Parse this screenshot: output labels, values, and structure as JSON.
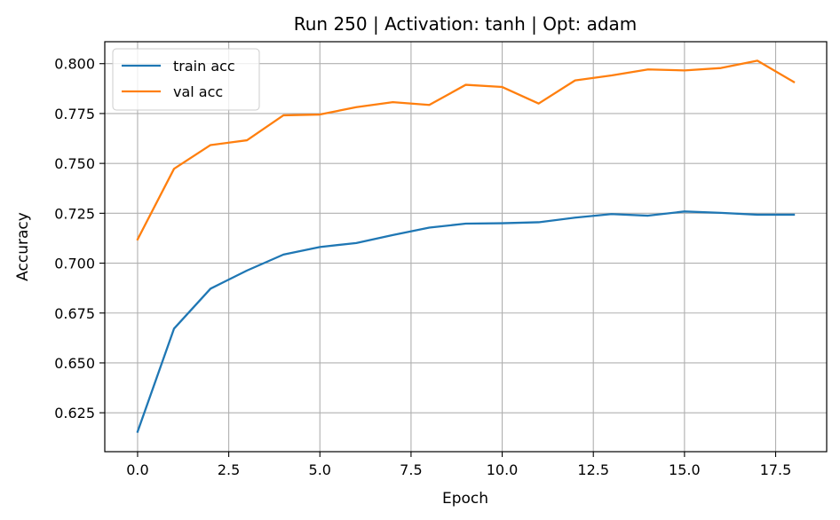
{
  "chart_data": {
    "type": "line",
    "title": "Run 250 | Activation: tanh | Opt: adam",
    "xlabel": "Epoch",
    "ylabel": "Accuracy",
    "xlim": [
      -0.9,
      18.9
    ],
    "ylim": [
      0.6055,
      0.811
    ],
    "xticks": [
      0.0,
      2.5,
      5.0,
      7.5,
      10.0,
      12.5,
      15.0,
      17.5
    ],
    "xtick_labels": [
      "0.0",
      "2.5",
      "5.0",
      "7.5",
      "10.0",
      "12.5",
      "15.0",
      "17.5"
    ],
    "yticks": [
      0.625,
      0.65,
      0.675,
      0.7,
      0.725,
      0.75,
      0.775,
      0.8
    ],
    "ytick_labels": [
      "0.625",
      "0.650",
      "0.675",
      "0.700",
      "0.725",
      "0.750",
      "0.775",
      "0.800"
    ],
    "grid": true,
    "legend_position": "upper-left",
    "x": [
      0,
      1,
      2,
      3,
      4,
      5,
      6,
      7,
      8,
      9,
      10,
      11,
      12,
      13,
      14,
      15,
      16,
      17,
      18
    ],
    "series": [
      {
        "name": "train acc",
        "color": "#1f77b4",
        "values": [
          0.6155,
          0.6672,
          0.6872,
          0.6963,
          0.7043,
          0.7081,
          0.7101,
          0.7141,
          0.7178,
          0.7198,
          0.72,
          0.7205,
          0.7228,
          0.7246,
          0.7238,
          0.7259,
          0.7252,
          0.7243,
          0.7243
        ]
      },
      {
        "name": "val acc",
        "color": "#ff7f0e",
        "values": [
          0.7119,
          0.7473,
          0.7592,
          0.7616,
          0.7741,
          0.7745,
          0.7782,
          0.7807,
          0.7793,
          0.7894,
          0.7883,
          0.78,
          0.7916,
          0.7941,
          0.7971,
          0.7966,
          0.7978,
          0.8015,
          0.7908
        ]
      }
    ]
  }
}
